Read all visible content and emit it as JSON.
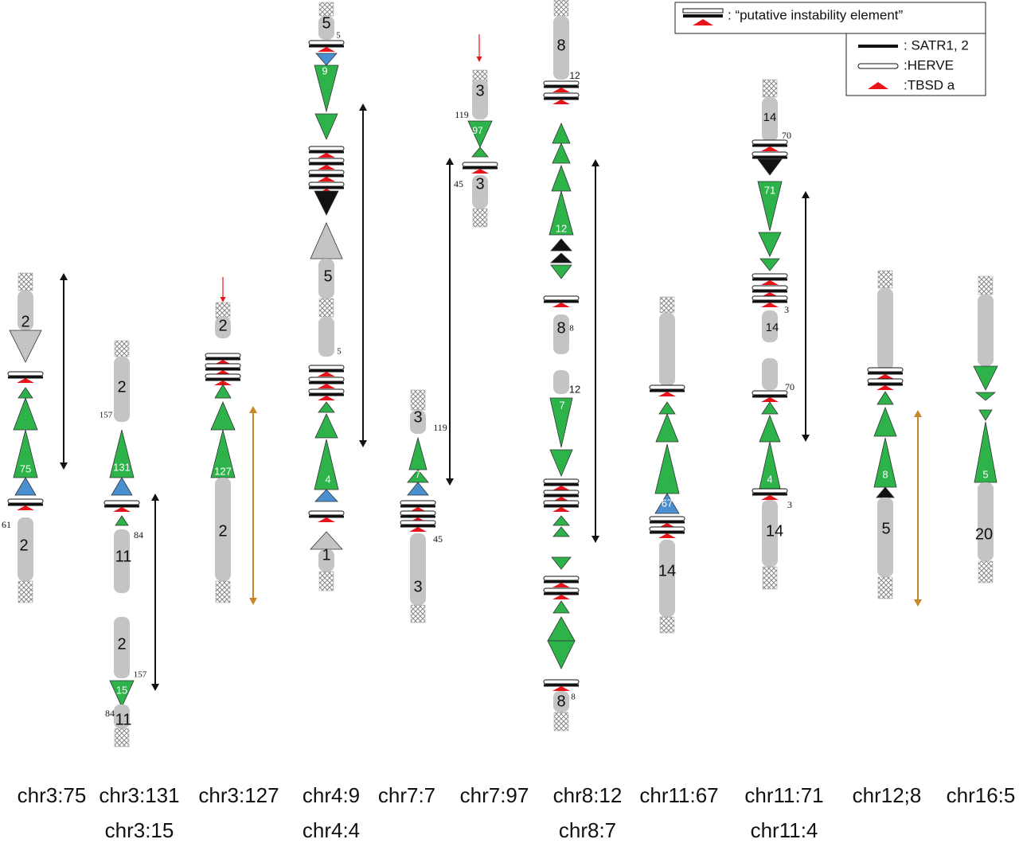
{
  "legend": {
    "instability": ": “putative instability element”",
    "satr": ": SATR1, 2",
    "herve": ":HERVE",
    "tbsd": ":TBSD a"
  },
  "columns": [
    {
      "caption": [
        "chr3:75"
      ],
      "labels": [
        "2",
        "75",
        "61",
        "2"
      ]
    },
    {
      "caption": [
        "chr3:131",
        "chr3:15"
      ],
      "labels": [
        "2",
        "157",
        "131",
        "84",
        "11",
        "2",
        "157",
        "15",
        "84",
        "11"
      ]
    },
    {
      "caption": [
        "chr3:127"
      ],
      "labels": [
        "2",
        "127",
        "2"
      ]
    },
    {
      "caption": [
        "chr4:9",
        "chr4:4"
      ],
      "labels": [
        "5",
        "5",
        "9",
        "5",
        "5",
        "4",
        "1"
      ]
    },
    {
      "caption": [
        "chr7:7"
      ],
      "labels": [
        "3",
        "119",
        "7",
        "45",
        "3"
      ]
    },
    {
      "caption": [
        "chr7:97"
      ],
      "labels": [
        "3",
        "119",
        "97",
        "45",
        "3"
      ]
    },
    {
      "caption": [
        "chr8:12",
        "chr8:7"
      ],
      "labels": [
        "8",
        "12",
        "12",
        "8",
        "8",
        "12",
        "7",
        "8",
        "8"
      ]
    },
    {
      "caption": [
        "chr11:67"
      ],
      "labels": [
        "67",
        "14"
      ]
    },
    {
      "caption": [
        "chr11:71",
        "chr11:4"
      ],
      "labels": [
        "14",
        "70",
        "71",
        "3",
        "14",
        "70",
        "4",
        "3",
        "14"
      ]
    },
    {
      "caption": [
        "chr12;8"
      ],
      "labels": [
        "8",
        "5"
      ]
    },
    {
      "caption": [
        "chr16:5"
      ],
      "labels": [
        "5",
        "20"
      ]
    }
  ]
}
